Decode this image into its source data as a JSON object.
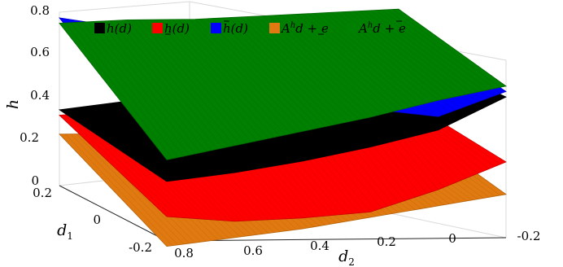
{
  "chart_data": {
    "type": "surface",
    "title": "",
    "zlabel": "h",
    "xlabel": "d",
    "xlabel_sub": "2",
    "ylabel": "d",
    "ylabel_sub": "1",
    "zlim": [
      0,
      0.8
    ],
    "d1lim": [
      -0.2,
      0.2
    ],
    "d2lim": [
      -0.2,
      0.8
    ],
    "z_ticks": [
      "0",
      "0.2",
      "0.4",
      "0.6",
      "0.8"
    ],
    "d1_ticks": [
      "0.2",
      "0",
      "-0.2"
    ],
    "d2_ticks": [
      "0.8",
      "0.6",
      "0.4",
      "0.2",
      "0",
      "-0.2"
    ],
    "legend_placement": "top-inside",
    "grid": false,
    "d1_values": [
      -0.2,
      0.2
    ],
    "d2_values": [
      -0.2,
      0.0,
      0.2,
      0.4,
      0.6,
      0.8
    ],
    "series": [
      {
        "name": "h(d)",
        "color": "#000000",
        "values_front_d1_neg02": [
          0.52,
          0.4,
          0.34,
          0.29,
          0.25,
          0.22
        ],
        "values_back_d1_02": [
          0.5,
          0.45,
          0.4,
          0.35,
          0.31,
          0.28
        ]
      },
      {
        "name": "h(d) under",
        "color": "#ff0000",
        "values_front_d1_neg02": [
          0.28,
          0.18,
          0.1,
          0.08,
          0.07,
          0.09
        ],
        "values_back_d1_02": [
          0.32,
          0.45,
          0.38,
          0.33,
          0.28,
          0.26
        ]
      },
      {
        "name": "h(d) over",
        "color": "#0000ff",
        "values_front_d1_neg02": [
          0.54,
          0.45,
          0.48,
          0.44,
          0.4,
          0.32
        ],
        "values_back_d1_02": [
          0.6,
          0.56,
          0.55,
          0.56,
          0.58,
          0.62
        ]
      },
      {
        "name": "A^h d + e under",
        "color": "#e07a10",
        "values_front_d1_neg02": [
          0.16,
          0.12,
          0.08,
          0.04,
          0.01,
          -0.02
        ],
        "values_back_d1_02": [
          0.24,
          0.22,
          0.2,
          0.19,
          0.19,
          0.19
        ]
      },
      {
        "name": "A^h d + e over",
        "color": "#008000",
        "values_front_d1_neg02": [
          0.56,
          0.51,
          0.45,
          0.4,
          0.35,
          0.3
        ],
        "values_back_d1_02": [
          0.64,
          0.63,
          0.62,
          0.61,
          0.61,
          0.6
        ]
      }
    ]
  },
  "legend": [
    {
      "text": "h(d)",
      "color": "#000000",
      "decoration": "none",
      "prefix": "",
      "suffix": ""
    },
    {
      "text": "h(d)",
      "color": "#ff0000",
      "decoration": "underline",
      "prefix": "",
      "suffix": ""
    },
    {
      "text": "h(d)",
      "color": "#0000ff",
      "decoration": "overline",
      "prefix": "",
      "suffix": ""
    },
    {
      "text": "A",
      "sup": "h",
      "color": "#e07a10",
      "mid": "d + ",
      "last": "e",
      "decoration": "underline"
    },
    {
      "text": "A",
      "sup": "h",
      "color": "#008000",
      "mid": "d + ",
      "last": "e",
      "decoration": "overline"
    }
  ]
}
